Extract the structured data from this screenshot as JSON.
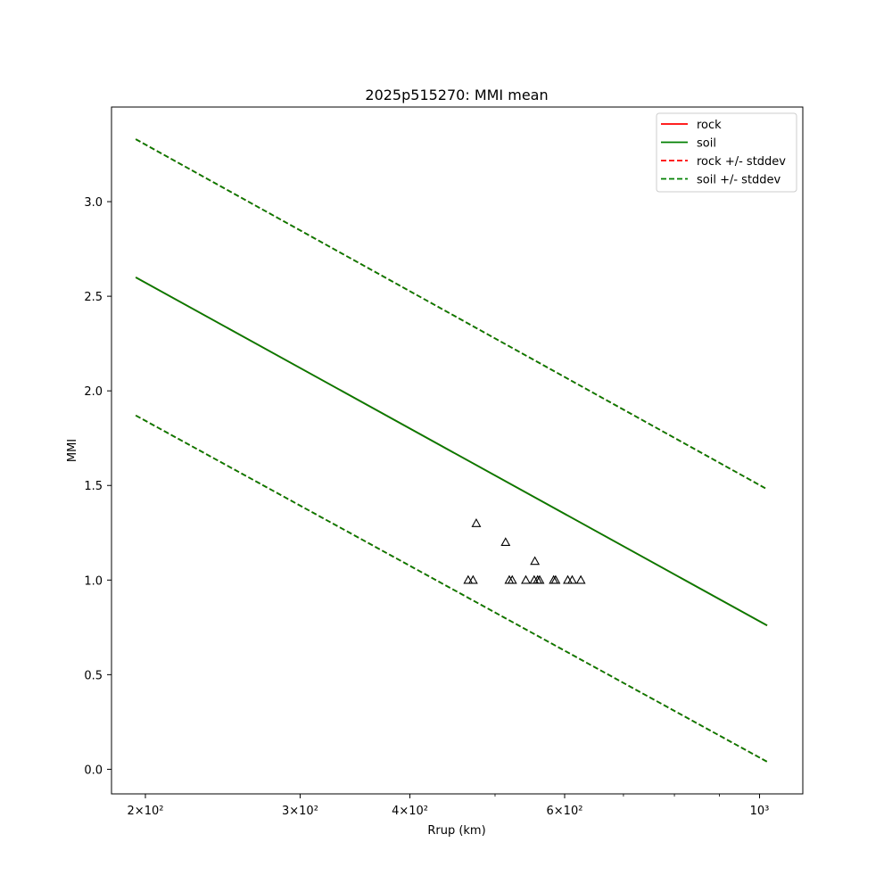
{
  "chart_data": {
    "type": "line",
    "title": "2025p515270: MMI mean",
    "xlabel": "Rrup (km)",
    "ylabel": "MMI",
    "xscale": "log",
    "xlim": [
      183,
      1120
    ],
    "ylim": [
      -0.13,
      3.5
    ],
    "x_ticks": [
      {
        "value": 200,
        "label": "2×10²"
      },
      {
        "value": 300,
        "label": "3×10²"
      },
      {
        "value": 400,
        "label": "4×10²"
      },
      {
        "value": 600,
        "label": "6×10²"
      },
      {
        "value": 1000,
        "label": "10³"
      }
    ],
    "x_minor_ticks": [
      500,
      700,
      800,
      900
    ],
    "y_ticks": [
      {
        "value": 0.0,
        "label": "0.0"
      },
      {
        "value": 0.5,
        "label": "0.5"
      },
      {
        "value": 1.0,
        "label": "1.0"
      },
      {
        "value": 1.5,
        "label": "1.5"
      },
      {
        "value": 2.0,
        "label": "2.0"
      },
      {
        "value": 2.5,
        "label": "2.5"
      },
      {
        "value": 3.0,
        "label": "3.0"
      }
    ],
    "grid": false,
    "legend_position": "top-right",
    "series": [
      {
        "name": "rock",
        "style": "solid",
        "color": "#ff0000",
        "x": [
          195,
          1020
        ],
        "y": [
          2.6,
          0.76
        ]
      },
      {
        "name": "soil",
        "style": "solid",
        "color": "#008000",
        "x": [
          195,
          1020
        ],
        "y": [
          2.6,
          0.76
        ]
      },
      {
        "name": "rock +/- stddev",
        "style": "dashed",
        "color": "#ff0000",
        "x": [
          195,
          1020
        ],
        "y": [
          3.33,
          1.48
        ],
        "y2": [
          1.87,
          0.04
        ]
      },
      {
        "name": "soil +/- stddev",
        "style": "dashed",
        "color": "#008000",
        "x": [
          195,
          1020
        ],
        "y": [
          3.33,
          1.48
        ],
        "y2": [
          1.87,
          0.04
        ]
      }
    ],
    "observations": {
      "marker": "triangle",
      "points": [
        {
          "x": 466,
          "y": 1.0
        },
        {
          "x": 472,
          "y": 1.0
        },
        {
          "x": 476,
          "y": 1.3
        },
        {
          "x": 514,
          "y": 1.2
        },
        {
          "x": 519,
          "y": 1.0
        },
        {
          "x": 523,
          "y": 1.0
        },
        {
          "x": 542,
          "y": 1.0
        },
        {
          "x": 555,
          "y": 1.1
        },
        {
          "x": 554,
          "y": 1.0
        },
        {
          "x": 559,
          "y": 1.0
        },
        {
          "x": 562,
          "y": 1.0
        },
        {
          "x": 583,
          "y": 1.0
        },
        {
          "x": 586,
          "y": 1.0
        },
        {
          "x": 605,
          "y": 1.0
        },
        {
          "x": 612,
          "y": 1.0
        },
        {
          "x": 626,
          "y": 1.0
        }
      ]
    }
  }
}
